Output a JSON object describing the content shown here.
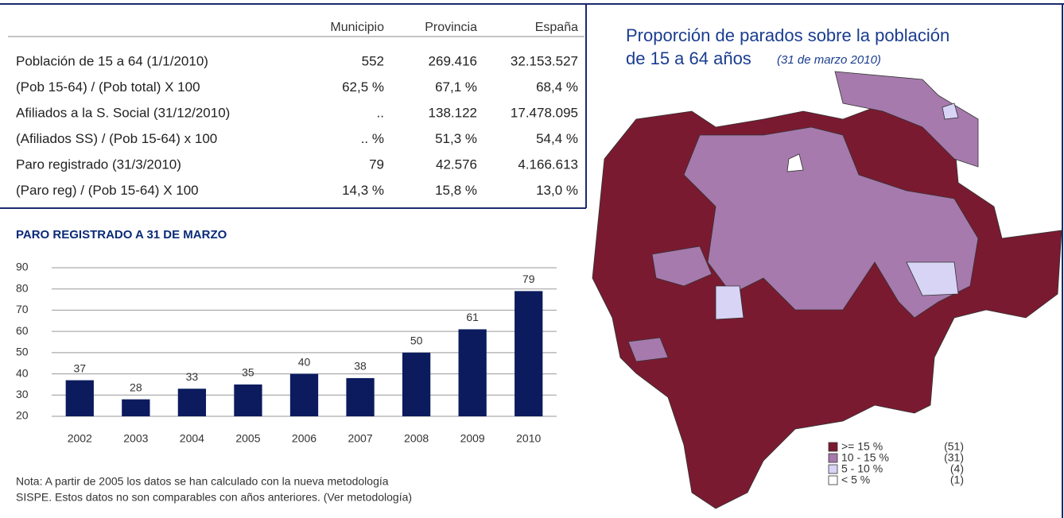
{
  "table": {
    "columns": [
      "Municipio",
      "Provincia",
      "España"
    ],
    "rows": [
      [
        "Población de 15 a 64 (1/1/2010)",
        "552",
        "269.416",
        "32.153.527"
      ],
      [
        "(Pob 15-64) / (Pob total) X 100",
        "62,5 %",
        "67,1 %",
        "68,4 %"
      ],
      [
        "Afiliados a la S. Social (31/12/2010)",
        "..",
        "138.122",
        "17.478.095"
      ],
      [
        "(Afiliados SS) / (Pob 15-64) x 100",
        ".. %",
        "51,3 %",
        "54,4 %"
      ],
      [
        "Paro registrado (31/3/2010)",
        "79",
        "42.576",
        "4.166.613"
      ],
      [
        "(Paro reg) / (Pob 15-64) X 100",
        "14,3 %",
        "15,8 %",
        "13,0 %"
      ]
    ]
  },
  "chart_data": {
    "type": "bar",
    "title": "PARO REGISTRADO A 31 DE MARZO",
    "categories": [
      "2002",
      "2003",
      "2004",
      "2005",
      "2006",
      "2007",
      "2008",
      "2009",
      "2010"
    ],
    "values": [
      37,
      28,
      33,
      35,
      40,
      38,
      50,
      61,
      79
    ],
    "color": "#0b1b5e",
    "ylim": [
      20,
      90
    ],
    "yticks": [
      20,
      30,
      40,
      50,
      60,
      70,
      80,
      90
    ],
    "grid": true
  },
  "note": [
    "Nota: A partir de 2005 los datos se han calculado con la nueva metodología",
    "SISPE. Estos datos no son comparables con años anteriores. (Ver metodología)"
  ],
  "map": {
    "title": [
      "Proporción de parados sobre la población",
      "de 15 a 64 años"
    ],
    "subtitle": "(31 de marzo 2010)",
    "legend": [
      {
        "label": ">= 15 %",
        "count": "(51)",
        "color": "#7a1a30"
      },
      {
        "label": "10 - 15 %",
        "count": "(31)",
        "color": "#a67aad"
      },
      {
        "label": "5 - 10 %",
        "count": "(4)",
        "color": "#d8d4f6"
      },
      {
        "label": "< 5 %",
        "count": "(1)",
        "color": "#ffffff"
      }
    ]
  }
}
